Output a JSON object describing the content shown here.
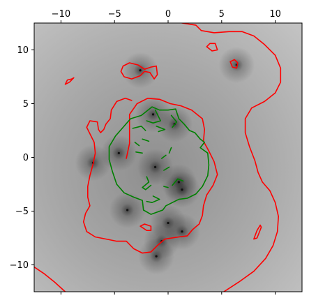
{
  "chart_data": {
    "type": "contour",
    "title": "",
    "xlabel": "",
    "ylabel": "",
    "xlim": [
      -12.5,
      12.5
    ],
    "ylim": [
      -12.5,
      12.5
    ],
    "xticks": [
      -10,
      -5,
      0,
      5,
      10
    ],
    "yticks": [
      -10,
      -5,
      0,
      5,
      10
    ],
    "xtick_labels": [
      "−10",
      "−5",
      "0",
      "5",
      "10"
    ],
    "ytick_labels": [
      "−10",
      "−5",
      "0",
      "5",
      "10"
    ],
    "grid": false,
    "legend": "none",
    "background": {
      "colormap": "gray",
      "description": "field magnitude shaded light gray far from sources, dark at point sources",
      "sources": [
        {
          "x": -2.6,
          "y": 8.1
        },
        {
          "x": 6.4,
          "y": 8.6
        },
        {
          "x": -1.4,
          "y": 4.0
        },
        {
          "x": 0.6,
          "y": 3.1
        },
        {
          "x": -4.6,
          "y": 0.4
        },
        {
          "x": -1.2,
          "y": -0.9
        },
        {
          "x": -7.0,
          "y": -0.5
        },
        {
          "x": 1.0,
          "y": -2.3
        },
        {
          "x": 1.3,
          "y": -3.0
        },
        {
          "x": -3.8,
          "y": -4.9
        },
        {
          "x": 0.0,
          "y": -6.1
        },
        {
          "x": 1.3,
          "y": -6.9
        },
        {
          "x": -0.6,
          "y": -7.8
        },
        {
          "x": -1.1,
          "y": -9.2
        }
      ]
    },
    "series": [
      {
        "color": "#ff0000",
        "paths": [
          [
            [
              -12.5,
              -10.2
            ],
            [
              -11.6,
              -10.8
            ],
            [
              -10.6,
              -11.6
            ],
            [
              -9.6,
              -12.5
            ]
          ],
          [
            [
              1.3,
              12.5
            ],
            [
              2.6,
              12.3
            ],
            [
              3.1,
              11.8
            ],
            [
              4.3,
              11.6
            ],
            [
              5.7,
              11.7
            ],
            [
              6.9,
              11.7
            ],
            [
              8.0,
              11.3
            ],
            [
              9.0,
              10.5
            ],
            [
              10.0,
              9.5
            ],
            [
              10.5,
              8.3
            ],
            [
              10.5,
              7.0
            ],
            [
              10.0,
              6.0
            ],
            [
              9.0,
              5.2
            ],
            [
              7.8,
              4.6
            ],
            [
              7.2,
              3.6
            ],
            [
              7.2,
              2.3
            ],
            [
              7.6,
              1.0
            ],
            [
              8.1,
              -0.3
            ],
            [
              8.4,
              -1.4
            ],
            [
              8.8,
              -2.3
            ],
            [
              9.5,
              -3.1
            ],
            [
              10.0,
              -4.2
            ],
            [
              10.3,
              -5.5
            ],
            [
              10.2,
              -6.9
            ],
            [
              9.8,
              -8.2
            ],
            [
              9.1,
              -9.4
            ],
            [
              8.0,
              -10.6
            ],
            [
              6.6,
              -11.6
            ],
            [
              5.2,
              -12.5
            ]
          ],
          [
            [
              -3.9,
              -0.1
            ],
            [
              -3.6,
              1.3
            ],
            [
              -3.6,
              2.8
            ],
            [
              -3.6,
              4.0
            ],
            [
              -2.9,
              5.0
            ],
            [
              -1.9,
              5.5
            ],
            [
              -0.8,
              5.4
            ],
            [
              0.2,
              5.0
            ],
            [
              1.2,
              4.8
            ],
            [
              2.2,
              4.4
            ],
            [
              3.2,
              3.6
            ],
            [
              3.4,
              2.6
            ],
            [
              3.3,
              1.5
            ],
            [
              3.8,
              0.6
            ],
            [
              4.3,
              -0.4
            ],
            [
              4.6,
              -1.6
            ],
            [
              4.2,
              -2.6
            ],
            [
              3.6,
              -3.5
            ],
            [
              3.3,
              -4.5
            ],
            [
              3.2,
              -5.4
            ],
            [
              2.9,
              -6.2
            ],
            [
              2.3,
              -6.7
            ],
            [
              1.8,
              -7.3
            ],
            [
              1.0,
              -7.4
            ],
            [
              -0.3,
              -7.6
            ],
            [
              -1.0,
              -8.2
            ],
            [
              -1.6,
              -8.8
            ],
            [
              -2.4,
              -8.9
            ],
            [
              -3.2,
              -8.5
            ],
            [
              -3.9,
              -7.8
            ],
            [
              -4.8,
              -7.8
            ],
            [
              -5.8,
              -7.6
            ],
            [
              -6.8,
              -7.4
            ],
            [
              -7.6,
              -6.9
            ],
            [
              -7.9,
              -6.0
            ],
            [
              -7.7,
              -5.2
            ],
            [
              -7.3,
              -4.5
            ],
            [
              -7.5,
              -3.7
            ],
            [
              -7.5,
              -2.7
            ],
            [
              -7.3,
              -1.7
            ],
            [
              -7.0,
              -0.6
            ],
            [
              -6.8,
              0.4
            ],
            [
              -6.9,
              1.4
            ],
            [
              -7.3,
              2.2
            ],
            [
              -7.6,
              2.8
            ],
            [
              -7.3,
              3.4
            ],
            [
              -6.6,
              3.3
            ],
            [
              -6.5,
              2.6
            ],
            [
              -6.3,
              2.3
            ],
            [
              -6.0,
              2.6
            ],
            [
              -5.8,
              3.1
            ],
            [
              -5.4,
              3.6
            ],
            [
              -5.3,
              4.4
            ],
            [
              -4.8,
              5.2
            ],
            [
              -4.0,
              5.5
            ],
            [
              -3.4,
              5.3
            ]
          ],
          [
            [
              -4.4,
              8.0
            ],
            [
              -4.1,
              7.5
            ],
            [
              -3.4,
              7.3
            ],
            [
              -2.6,
              7.6
            ],
            [
              -2.2,
              8.0
            ],
            [
              -1.7,
              7.9
            ],
            [
              -1.3,
              7.3
            ],
            [
              -1.0,
              7.7
            ],
            [
              -1.1,
              8.5
            ],
            [
              -1.6,
              8.4
            ],
            [
              -2.2,
              8.2
            ],
            [
              -2.8,
              8.6
            ],
            [
              -3.6,
              8.8
            ],
            [
              -4.2,
              8.5
            ],
            [
              -4.4,
              8.0
            ]
          ],
          [
            [
              3.6,
              10.3
            ],
            [
              4.1,
              9.9
            ],
            [
              4.6,
              10.0
            ],
            [
              4.4,
              10.6
            ],
            [
              3.9,
              10.6
            ],
            [
              3.6,
              10.3
            ]
          ],
          [
            [
              5.8,
              8.9
            ],
            [
              6.0,
              8.4
            ],
            [
              6.4,
              8.3
            ],
            [
              6.5,
              8.8
            ],
            [
              6.2,
              9.1
            ],
            [
              5.8,
              8.9
            ]
          ],
          [
            [
              -9.6,
              6.8
            ],
            [
              -9.4,
              7.2
            ],
            [
              -9.0,
              7.3
            ],
            [
              -8.8,
              7.4
            ],
            [
              -9.2,
              7.0
            ],
            [
              -9.6,
              6.8
            ]
          ],
          [
            [
              -2.6,
              -6.4
            ],
            [
              -2.2,
              -6.2
            ],
            [
              -1.6,
              -6.4
            ],
            [
              -1.6,
              -6.8
            ],
            [
              -2.0,
              -6.8
            ],
            [
              -2.6,
              -6.4
            ]
          ],
          [
            [
              8.0,
              -7.6
            ],
            [
              8.3,
              -6.8
            ],
            [
              8.6,
              -6.3
            ],
            [
              8.7,
              -6.5
            ],
            [
              8.3,
              -7.5
            ],
            [
              8.0,
              -7.6
            ]
          ]
        ]
      },
      {
        "color": "#008000",
        "paths": [
          [
            [
              -5.2,
              -1.3
            ],
            [
              -5.5,
              -0.2
            ],
            [
              -5.5,
              1.0
            ],
            [
              -4.9,
              2.0
            ],
            [
              -4.2,
              2.8
            ],
            [
              -3.5,
              3.6
            ],
            [
              -2.5,
              3.9
            ],
            [
              -1.5,
              4.7
            ],
            [
              -0.8,
              4.4
            ],
            [
              0.0,
              4.4
            ],
            [
              0.7,
              4.5
            ],
            [
              1.0,
              3.6
            ],
            [
              1.5,
              3.1
            ],
            [
              2.0,
              2.5
            ],
            [
              2.5,
              2.3
            ],
            [
              3.0,
              1.7
            ],
            [
              3.4,
              1.4
            ],
            [
              3.0,
              0.9
            ],
            [
              3.7,
              0.4
            ],
            [
              3.8,
              -0.7
            ],
            [
              3.7,
              -1.7
            ],
            [
              3.2,
              -2.7
            ],
            [
              2.6,
              -3.4
            ],
            [
              1.8,
              -3.8
            ],
            [
              1.0,
              -3.9
            ],
            [
              0.4,
              -4.2
            ],
            [
              -0.2,
              -4.5
            ],
            [
              -0.5,
              -4.9
            ],
            [
              -1.6,
              -5.3
            ],
            [
              -2.3,
              -4.9
            ],
            [
              -2.4,
              -4.0
            ],
            [
              -3.2,
              -3.7
            ],
            [
              -4.1,
              -3.3
            ],
            [
              -4.8,
              -2.5
            ],
            [
              -5.2,
              -1.3
            ]
          ],
          [
            [
              -1.2,
              4.4
            ],
            [
              -0.7,
              3.4
            ],
            [
              -1.4,
              3.2
            ],
            [
              -2.0,
              3.4
            ]
          ],
          [
            [
              -1.1,
              2.9
            ],
            [
              -0.3,
              2.6
            ],
            [
              -0.9,
              2.4
            ]
          ],
          [
            [
              -3.3,
              2.7
            ],
            [
              -2.5,
              2.9
            ],
            [
              -2.1,
              2.5
            ]
          ],
          [
            [
              0.3,
              3.9
            ],
            [
              0.8,
              3.3
            ],
            [
              0.4,
              2.8
            ]
          ],
          [
            [
              -2.4,
              1.7
            ],
            [
              -1.8,
              1.5
            ]
          ],
          [
            [
              -3.0,
              0.5
            ],
            [
              -2.4,
              0.4
            ]
          ],
          [
            [
              -3.1,
              1.4
            ],
            [
              -2.7,
              1.1
            ]
          ],
          [
            [
              -0.4,
              -1.2
            ],
            [
              0.1,
              -0.9
            ]
          ],
          [
            [
              -0.6,
              -0.1
            ],
            [
              -0.2,
              0.2
            ]
          ],
          [
            [
              0.1,
              0.4
            ],
            [
              0.3,
              0.9
            ]
          ],
          [
            [
              -2.0,
              -1.8
            ],
            [
              -1.8,
              -2.3
            ],
            [
              -2.4,
              -2.8
            ],
            [
              -2.1,
              -3.0
            ],
            [
              -1.6,
              -2.6
            ]
          ],
          [
            [
              0.4,
              -2.6
            ],
            [
              0.9,
              -2.0
            ],
            [
              1.4,
              -2.2
            ]
          ],
          [
            [
              -0.4,
              -2.7
            ],
            [
              0.0,
              -2.8
            ]
          ],
          [
            [
              -1.4,
              -3.6
            ],
            [
              -0.8,
              -3.9
            ],
            [
              -1.5,
              -4.2
            ],
            [
              -2.0,
              -4.1
            ]
          ]
        ]
      }
    ]
  }
}
